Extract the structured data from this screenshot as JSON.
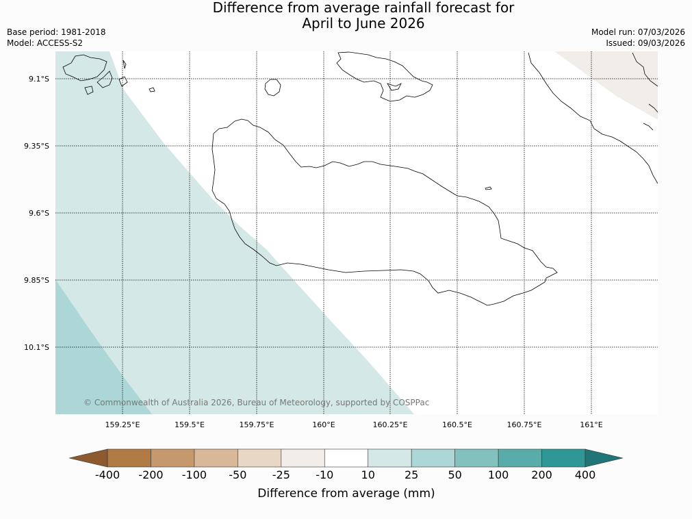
{
  "title": {
    "line1": "Difference from average rainfall forecast for",
    "line2": "April to June 2026"
  },
  "meta": {
    "base_period": "Base period: 1981-2018",
    "model": "Model: ACCESS-S2",
    "model_run": "Model run: 07/03/2026",
    "issued": "Issued: 09/03/2026"
  },
  "map": {
    "lat_labels": [
      "9.1°S",
      "9.35°S",
      "9.6°S",
      "9.85°S",
      "10.1°S"
    ],
    "lon_labels": [
      "159.25°E",
      "159.5°E",
      "159.75°E",
      "160°E",
      "160.25°E",
      "160.5°E",
      "160.75°E",
      "161°E"
    ],
    "copyright": "© Commonwealth of Australia 2026, Bureau of Meteorology, supported by COSPPac",
    "colors": {
      "band_10_25": "#d4e8e7",
      "band_25_50": "#add6d6",
      "band_m25_m10": "#f1ede9",
      "coast": "#000000"
    }
  },
  "colorbar": {
    "title": "Difference from average (mm)",
    "ticks": [
      "-400",
      "-200",
      "-100",
      "-50",
      "-25",
      "-10",
      "10",
      "25",
      "50",
      "100",
      "200",
      "400"
    ],
    "colors": [
      "#8c5a2e",
      "#b07a45",
      "#c6986d",
      "#d8b898",
      "#e9d7c6",
      "#f2ede8",
      "#ffffff",
      "#d4e8e7",
      "#add6d6",
      "#83c1bf",
      "#5aacaa",
      "#2f9896",
      "#207677"
    ]
  }
}
